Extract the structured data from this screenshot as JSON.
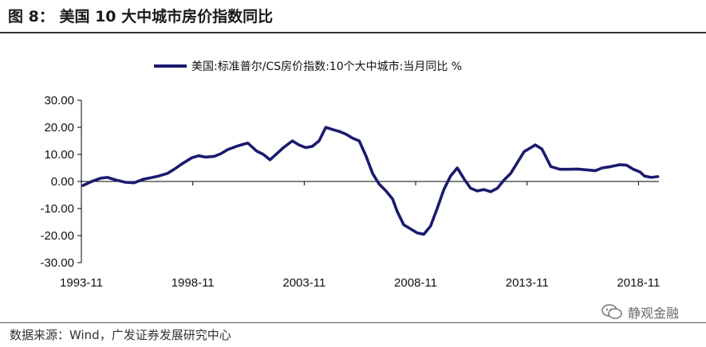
{
  "figure_title": "图 8：  美国 10 大中城市房价指数同比",
  "source_text": "数据来源：Wind，广发证券发展研究中心",
  "watermark_text": "静观金融",
  "line_color": "#1a1a6e",
  "chart_data": {
    "type": "line",
    "title": "",
    "xlabel": "",
    "ylabel": "",
    "ylim": [
      -30,
      30
    ],
    "yticks": [
      "30.00",
      "20.00",
      "10.00",
      "0.00",
      "-10.00",
      "-20.00",
      "-30.00"
    ],
    "ytick_values": [
      30,
      20,
      10,
      0,
      -10,
      -20,
      -30
    ],
    "xticks": [
      "1993-11",
      "1998-11",
      "2003-11",
      "2008-11",
      "2013-11",
      "2018-11"
    ],
    "xtick_values": [
      1993.833,
      1998.833,
      2003.833,
      2008.833,
      2013.833,
      2018.833
    ],
    "xlim": [
      1993.833,
      2019.75
    ],
    "grid": false,
    "legend_position": "top-center",
    "series": [
      {
        "name": "美国:标准普尔/CS房价指数:10个大中城市:当月同比 %",
        "x": [
          1993.9,
          1994.3,
          1994.7,
          1995.0,
          1995.4,
          1995.8,
          1996.2,
          1996.6,
          1996.9,
          1997.3,
          1997.7,
          1998.0,
          1998.4,
          1998.8,
          1999.1,
          1999.4,
          1999.8,
          2000.1,
          2000.4,
          2000.8,
          2001.0,
          2001.3,
          2001.7,
          2002.0,
          2002.3,
          2002.7,
          2002.9,
          2003.3,
          2003.6,
          2003.9,
          2004.2,
          2004.5,
          2004.8,
          2005.1,
          2005.4,
          2005.7,
          2006.0,
          2006.3,
          2006.6,
          2006.9,
          2007.2,
          2007.5,
          2007.8,
          2008.0,
          2008.3,
          2008.6,
          2008.9,
          2009.2,
          2009.5,
          2009.8,
          2010.1,
          2010.4,
          2010.7,
          2011.0,
          2011.3,
          2011.6,
          2011.9,
          2012.2,
          2012.5,
          2012.8,
          2013.1,
          2013.4,
          2013.7,
          2014.0,
          2014.2,
          2014.5,
          2014.9,
          2015.3,
          2015.7,
          2016.1,
          2016.5,
          2016.9,
          2017.2,
          2017.6,
          2018.0,
          2018.3,
          2018.6,
          2018.9,
          2019.1,
          2019.4,
          2019.7
        ],
        "y": [
          -1.5,
          0.0,
          1.2,
          1.5,
          0.5,
          -0.3,
          -0.5,
          0.8,
          1.3,
          2.0,
          3.0,
          4.5,
          6.8,
          8.8,
          9.5,
          9.0,
          9.3,
          10.3,
          11.8,
          13.0,
          13.5,
          14.2,
          11.2,
          10.0,
          8.0,
          11.0,
          12.5,
          15.0,
          13.5,
          12.5,
          13.0,
          15.0,
          20.0,
          19.2,
          18.5,
          17.5,
          16.0,
          15.0,
          9.5,
          3.0,
          -1.0,
          -3.5,
          -6.5,
          -11.0,
          -16.0,
          -17.5,
          -19.0,
          -19.5,
          -16.5,
          -10.0,
          -3.0,
          2.0,
          5.0,
          1.0,
          -2.5,
          -3.5,
          -3.0,
          -3.8,
          -2.5,
          0.5,
          3.0,
          7.0,
          11.0,
          12.5,
          13.5,
          12.0,
          5.5,
          4.5,
          4.5,
          4.6,
          4.3,
          4.0,
          5.0,
          5.5,
          6.2,
          6.0,
          4.5,
          3.5,
          2.0,
          1.5,
          1.8
        ]
      }
    ]
  }
}
